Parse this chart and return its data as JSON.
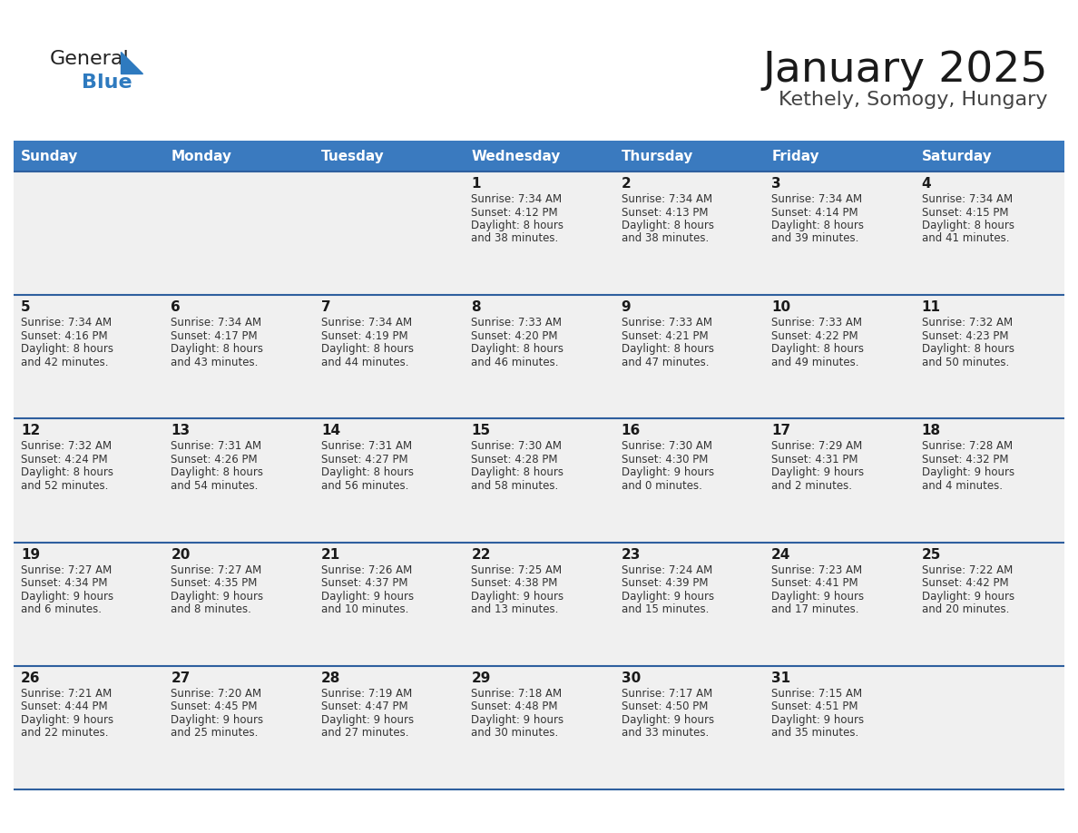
{
  "title": "January 2025",
  "subtitle": "Kethely, Somogy, Hungary",
  "header_bg": "#3a7abf",
  "header_text_color": "#ffffff",
  "cell_bg": "#f0f0f0",
  "row_line_color": "#2e5f9e",
  "days_of_week": [
    "Sunday",
    "Monday",
    "Tuesday",
    "Wednesday",
    "Thursday",
    "Friday",
    "Saturday"
  ],
  "weeks": [
    [
      {
        "day": "",
        "sunrise": "",
        "sunset": "",
        "daylight": ""
      },
      {
        "day": "",
        "sunrise": "",
        "sunset": "",
        "daylight": ""
      },
      {
        "day": "",
        "sunrise": "",
        "sunset": "",
        "daylight": ""
      },
      {
        "day": "1",
        "sunrise": "7:34 AM",
        "sunset": "4:12 PM",
        "daylight": "8 hours\nand 38 minutes."
      },
      {
        "day": "2",
        "sunrise": "7:34 AM",
        "sunset": "4:13 PM",
        "daylight": "8 hours\nand 38 minutes."
      },
      {
        "day": "3",
        "sunrise": "7:34 AM",
        "sunset": "4:14 PM",
        "daylight": "8 hours\nand 39 minutes."
      },
      {
        "day": "4",
        "sunrise": "7:34 AM",
        "sunset": "4:15 PM",
        "daylight": "8 hours\nand 41 minutes."
      }
    ],
    [
      {
        "day": "5",
        "sunrise": "7:34 AM",
        "sunset": "4:16 PM",
        "daylight": "8 hours\nand 42 minutes."
      },
      {
        "day": "6",
        "sunrise": "7:34 AM",
        "sunset": "4:17 PM",
        "daylight": "8 hours\nand 43 minutes."
      },
      {
        "day": "7",
        "sunrise": "7:34 AM",
        "sunset": "4:19 PM",
        "daylight": "8 hours\nand 44 minutes."
      },
      {
        "day": "8",
        "sunrise": "7:33 AM",
        "sunset": "4:20 PM",
        "daylight": "8 hours\nand 46 minutes."
      },
      {
        "day": "9",
        "sunrise": "7:33 AM",
        "sunset": "4:21 PM",
        "daylight": "8 hours\nand 47 minutes."
      },
      {
        "day": "10",
        "sunrise": "7:33 AM",
        "sunset": "4:22 PM",
        "daylight": "8 hours\nand 49 minutes."
      },
      {
        "day": "11",
        "sunrise": "7:32 AM",
        "sunset": "4:23 PM",
        "daylight": "8 hours\nand 50 minutes."
      }
    ],
    [
      {
        "day": "12",
        "sunrise": "7:32 AM",
        "sunset": "4:24 PM",
        "daylight": "8 hours\nand 52 minutes."
      },
      {
        "day": "13",
        "sunrise": "7:31 AM",
        "sunset": "4:26 PM",
        "daylight": "8 hours\nand 54 minutes."
      },
      {
        "day": "14",
        "sunrise": "7:31 AM",
        "sunset": "4:27 PM",
        "daylight": "8 hours\nand 56 minutes."
      },
      {
        "day": "15",
        "sunrise": "7:30 AM",
        "sunset": "4:28 PM",
        "daylight": "8 hours\nand 58 minutes."
      },
      {
        "day": "16",
        "sunrise": "7:30 AM",
        "sunset": "4:30 PM",
        "daylight": "9 hours\nand 0 minutes."
      },
      {
        "day": "17",
        "sunrise": "7:29 AM",
        "sunset": "4:31 PM",
        "daylight": "9 hours\nand 2 minutes."
      },
      {
        "day": "18",
        "sunrise": "7:28 AM",
        "sunset": "4:32 PM",
        "daylight": "9 hours\nand 4 minutes."
      }
    ],
    [
      {
        "day": "19",
        "sunrise": "7:27 AM",
        "sunset": "4:34 PM",
        "daylight": "9 hours\nand 6 minutes."
      },
      {
        "day": "20",
        "sunrise": "7:27 AM",
        "sunset": "4:35 PM",
        "daylight": "9 hours\nand 8 minutes."
      },
      {
        "day": "21",
        "sunrise": "7:26 AM",
        "sunset": "4:37 PM",
        "daylight": "9 hours\nand 10 minutes."
      },
      {
        "day": "22",
        "sunrise": "7:25 AM",
        "sunset": "4:38 PM",
        "daylight": "9 hours\nand 13 minutes."
      },
      {
        "day": "23",
        "sunrise": "7:24 AM",
        "sunset": "4:39 PM",
        "daylight": "9 hours\nand 15 minutes."
      },
      {
        "day": "24",
        "sunrise": "7:23 AM",
        "sunset": "4:41 PM",
        "daylight": "9 hours\nand 17 minutes."
      },
      {
        "day": "25",
        "sunrise": "7:22 AM",
        "sunset": "4:42 PM",
        "daylight": "9 hours\nand 20 minutes."
      }
    ],
    [
      {
        "day": "26",
        "sunrise": "7:21 AM",
        "sunset": "4:44 PM",
        "daylight": "9 hours\nand 22 minutes."
      },
      {
        "day": "27",
        "sunrise": "7:20 AM",
        "sunset": "4:45 PM",
        "daylight": "9 hours\nand 25 minutes."
      },
      {
        "day": "28",
        "sunrise": "7:19 AM",
        "sunset": "4:47 PM",
        "daylight": "9 hours\nand 27 minutes."
      },
      {
        "day": "29",
        "sunrise": "7:18 AM",
        "sunset": "4:48 PM",
        "daylight": "9 hours\nand 30 minutes."
      },
      {
        "day": "30",
        "sunrise": "7:17 AM",
        "sunset": "4:50 PM",
        "daylight": "9 hours\nand 33 minutes."
      },
      {
        "day": "31",
        "sunrise": "7:15 AM",
        "sunset": "4:51 PM",
        "daylight": "9 hours\nand 35 minutes."
      },
      {
        "day": "",
        "sunrise": "",
        "sunset": "",
        "daylight": ""
      }
    ]
  ],
  "logo_text_general": "General",
  "logo_text_blue": "Blue",
  "logo_color_general": "#222222",
  "logo_color_blue": "#2e7abf",
  "logo_triangle_color": "#2e7abf",
  "title_fontsize": 34,
  "subtitle_fontsize": 16,
  "header_fontsize": 11,
  "day_num_fontsize": 11,
  "cell_text_fontsize": 8.5
}
